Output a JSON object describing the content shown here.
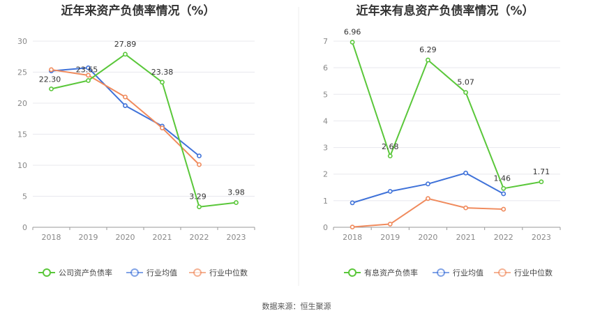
{
  "source": "数据来源：恒生聚源",
  "chart_data": [
    {
      "type": "line",
      "title": "近年来资产负债率情况（%）",
      "categories": [
        "2018",
        "2019",
        "2020",
        "2021",
        "2022",
        "2023"
      ],
      "ylim": [
        0,
        30
      ],
      "yticks": [
        0,
        5,
        10,
        15,
        20,
        25,
        30
      ],
      "grid": true,
      "legend_position": "bottom",
      "series": [
        {
          "name": "公司资产负债率",
          "color": "#5ac73a",
          "values": [
            22.3,
            23.65,
            27.89,
            23.38,
            3.29,
            3.98
          ],
          "labels": [
            "22.30",
            "23.65",
            "27.89",
            "23.38",
            "3.29",
            "3.98"
          ]
        },
        {
          "name": "行业均值",
          "color": "#3f72d9",
          "values": [
            25.2,
            25.7,
            19.6,
            16.3,
            11.5,
            null
          ]
        },
        {
          "name": "行业中位数",
          "color": "#f08a5c",
          "values": [
            25.4,
            24.5,
            21.0,
            16.0,
            10.1,
            null
          ]
        }
      ]
    },
    {
      "type": "line",
      "title": "近年来有息资产负债率情况（%）",
      "categories": [
        "2018",
        "2019",
        "2020",
        "2021",
        "2022",
        "2023"
      ],
      "ylim": [
        0,
        7
      ],
      "yticks": [
        0,
        1,
        2,
        3,
        4,
        5,
        6,
        7
      ],
      "grid": true,
      "legend_position": "bottom",
      "series": [
        {
          "name": "有息资产负债率",
          "color": "#5ac73a",
          "values": [
            6.96,
            2.68,
            6.29,
            5.07,
            1.46,
            1.71
          ],
          "labels": [
            "6.96",
            "2.68",
            "6.29",
            "5.07",
            "1.46",
            "1.71"
          ]
        },
        {
          "name": "行业均值",
          "color": "#3f72d9",
          "values": [
            0.92,
            1.35,
            1.63,
            2.04,
            1.26,
            null
          ]
        },
        {
          "name": "行业中位数",
          "color": "#f08a5c",
          "values": [
            0.01,
            0.12,
            1.08,
            0.73,
            0.68,
            null
          ]
        }
      ]
    }
  ]
}
